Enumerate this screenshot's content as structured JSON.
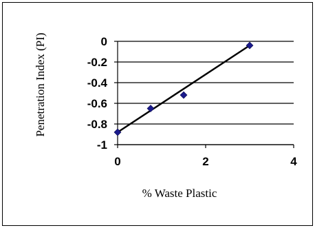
{
  "chart_data": {
    "type": "scatter",
    "title": "",
    "xlabel": "% Waste Plastic",
    "ylabel": "Penetration Index (PI)",
    "xlim": [
      0,
      4
    ],
    "ylim": [
      -1,
      0
    ],
    "x_ticks": [
      0,
      2,
      4
    ],
    "x_tick_labels": [
      "0",
      "2",
      "4"
    ],
    "y_ticks": [
      0,
      -0.2,
      -0.4,
      -0.6,
      -0.8,
      -1
    ],
    "y_tick_labels": [
      "0",
      "-0.2",
      "-0.4",
      "-0.6",
      "-0.8",
      "-1"
    ],
    "grid": "horizontal",
    "legend": "none",
    "series": [
      {
        "marker": "diamond",
        "color": "#1a1a8c",
        "points": [
          {
            "x": 0,
            "y": -0.88
          },
          {
            "x": 0.75,
            "y": -0.65
          },
          {
            "x": 1.5,
            "y": -0.52
          },
          {
            "x": 3,
            "y": -0.04
          }
        ],
        "trendline": {
          "type": "linear",
          "color": "#000000",
          "from": {
            "x": 0,
            "y": -0.88
          },
          "to": {
            "x": 3,
            "y": -0.04
          }
        }
      }
    ]
  }
}
